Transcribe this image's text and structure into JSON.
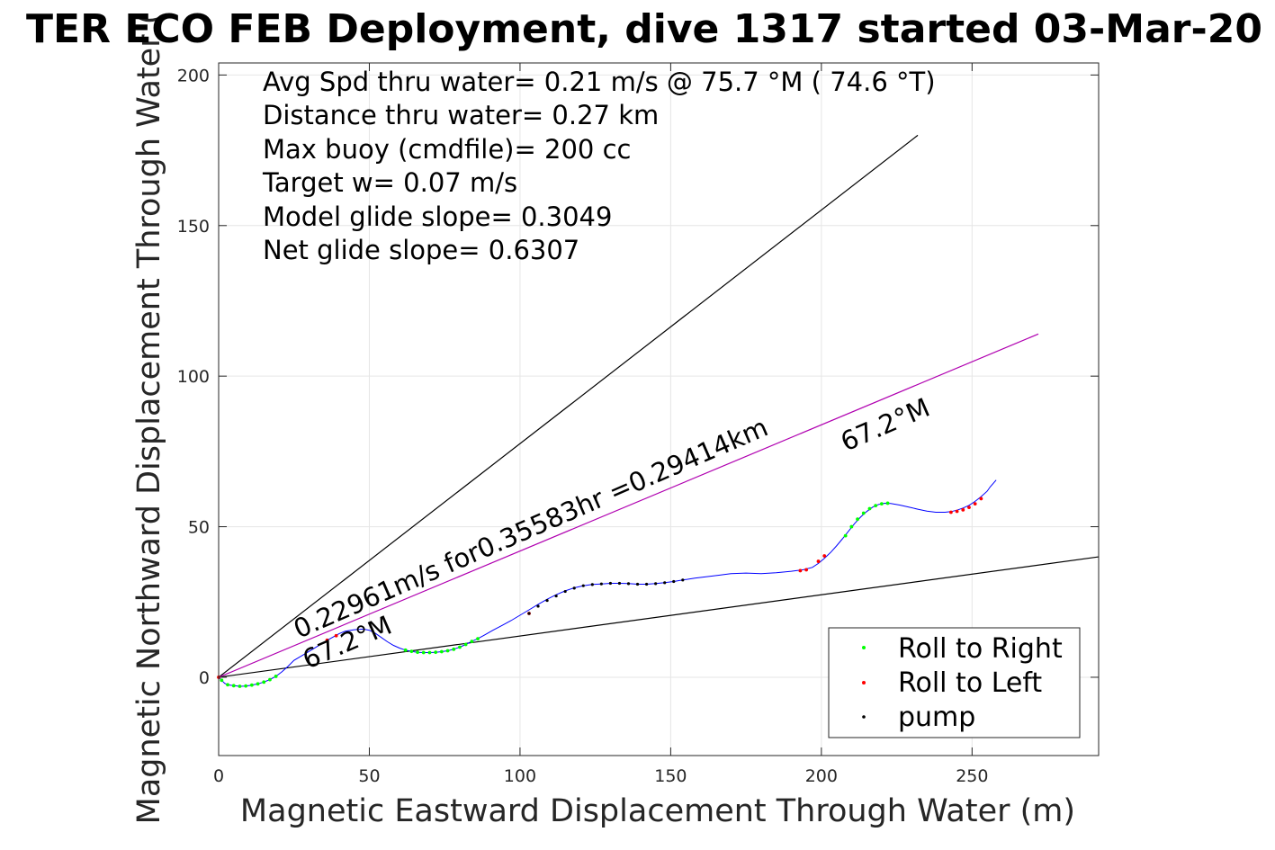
{
  "chart_data": {
    "type": "line",
    "title": "TER ECO FEB Deployment, dive 1317 started 03-Mar-20",
    "xlabel": "Magnetic Eastward Displacement Through Water (m)",
    "ylabel": "Magnetic Northward Displacement Through Water (",
    "xlim": [
      0,
      292
    ],
    "ylim": [
      -26,
      204
    ],
    "xticks": [
      0,
      50,
      100,
      150,
      200,
      250
    ],
    "yticks": [
      0,
      50,
      100,
      150,
      200
    ],
    "grid": true,
    "annotations": [
      "Avg Spd thru water=  0.21 m/s @  75.7 °M ( 74.6 °T)",
      "Distance thru water=  0.27 km",
      "Max buoy (cmdfile)= 200 cc",
      "Target w= 0.07 m/s",
      "Model glide slope= 0.3049",
      "Net glide slope= 0.6307"
    ],
    "rotated_labels": {
      "speed_label": "0.22961m/s for0.35583hr =0.29414km",
      "heading_label_near": "67.2°M",
      "heading_label_far": "67.2°M"
    },
    "reference_lines": [
      {
        "name": "upper",
        "x": [
          0,
          232
        ],
        "y": [
          0,
          180
        ],
        "color": "#000000"
      },
      {
        "name": "lower",
        "x": [
          0,
          292
        ],
        "y": [
          0,
          40
        ],
        "color": "#000000"
      },
      {
        "name": "heading",
        "x": [
          0,
          272
        ],
        "y": [
          0,
          114
        ],
        "color": "#b000b0"
      }
    ],
    "track": {
      "color": "#0000ff",
      "x": [
        0,
        1,
        2,
        3,
        5,
        7,
        9,
        11,
        13,
        15,
        17,
        19,
        21,
        23,
        25,
        28,
        31,
        34,
        37,
        40,
        42,
        45,
        48,
        50,
        52,
        54,
        56,
        58,
        60,
        62,
        64,
        66,
        68,
        70,
        72,
        74,
        76,
        78,
        80,
        82,
        84,
        86,
        88,
        91,
        94,
        97,
        100,
        103,
        106,
        109,
        112,
        115,
        118,
        121,
        124,
        127,
        130,
        133,
        136,
        139,
        142,
        145,
        148,
        151,
        154,
        158,
        162,
        166,
        170,
        175,
        180,
        185,
        190,
        194,
        197,
        199,
        201,
        203,
        205,
        207,
        209,
        211,
        213,
        215,
        217,
        219,
        221,
        223,
        226,
        229,
        232,
        235,
        238,
        241,
        243,
        245,
        247,
        249,
        251,
        253,
        255,
        256,
        258
      ],
      "y": [
        0,
        -1,
        -2,
        -2.5,
        -2.8,
        -3,
        -2.9,
        -2.6,
        -2.2,
        -1.6,
        -0.8,
        0.3,
        1.8,
        3.6,
        5.6,
        7.4,
        9.2,
        11,
        12.8,
        14.5,
        15.3,
        15.8,
        16,
        15.6,
        14.6,
        13.2,
        11.8,
        10.6,
        9.7,
        9,
        8.6,
        8.3,
        8.2,
        8.2,
        8.3,
        8.5,
        8.8,
        9.3,
        10,
        10.9,
        11.9,
        12.8,
        13.9,
        15.6,
        17.2,
        18.8,
        20.6,
        22.4,
        24.2,
        25.9,
        27.4,
        28.7,
        29.7,
        30.4,
        30.8,
        31,
        31.2,
        31.2,
        31.1,
        30.9,
        30.9,
        31.1,
        31.4,
        31.8,
        32.3,
        32.9,
        33.4,
        33.9,
        34.4,
        34.6,
        34.4,
        34.7,
        35.2,
        35.7,
        36.5,
        37.8,
        39.5,
        41.4,
        43.6,
        46,
        48.5,
        51,
        53.2,
        55,
        56.5,
        57.4,
        57.8,
        57.7,
        57.2,
        56.5,
        55.8,
        55.2,
        54.8,
        54.8,
        55,
        55.5,
        56.2,
        57.1,
        58.4,
        60,
        61.8,
        63.2,
        65.5
      ]
    },
    "series": [
      {
        "name": "Roll to Right",
        "color": "#00ff00",
        "x": [
          1,
          3,
          5,
          7,
          9,
          11,
          13,
          15,
          17,
          19,
          62,
          64,
          66,
          68,
          70,
          72,
          74,
          76,
          78,
          80,
          82,
          84,
          86,
          208,
          210,
          212,
          214,
          216,
          218,
          220,
          222
        ],
        "y": [
          -1,
          -2.5,
          -2.8,
          -3,
          -2.9,
          -2.6,
          -2.2,
          -1.6,
          -0.8,
          0.3,
          9,
          8.6,
          8.3,
          8.2,
          8.2,
          8.3,
          8.5,
          8.8,
          9.3,
          10,
          10.9,
          11.9,
          12.8,
          47,
          50,
          52.5,
          54.5,
          56,
          57,
          57.6,
          57.8
        ]
      },
      {
        "name": "Roll to Left",
        "color": "#ff0000",
        "x": [
          0,
          36,
          39,
          103,
          193,
          195,
          199,
          201,
          243,
          245,
          247,
          249,
          251,
          253
        ],
        "y": [
          0,
          12.3,
          13.8,
          21.2,
          35.4,
          35.7,
          38.5,
          40.3,
          54.8,
          55.1,
          55.6,
          56.4,
          57.6,
          59.3
        ]
      },
      {
        "name": "pump",
        "color": "#000000",
        "x": [
          103,
          106,
          109,
          112,
          115,
          118,
          121,
          124,
          127,
          130,
          133,
          136,
          139,
          142,
          145,
          148,
          151,
          154
        ],
        "y": [
          21.2,
          23.6,
          25.5,
          27,
          28.5,
          29.6,
          30.4,
          30.8,
          31,
          31.2,
          31.2,
          31.1,
          30.9,
          30.9,
          31.1,
          31.4,
          31.8,
          32.3
        ]
      }
    ],
    "legend_position": "bottom-right"
  }
}
